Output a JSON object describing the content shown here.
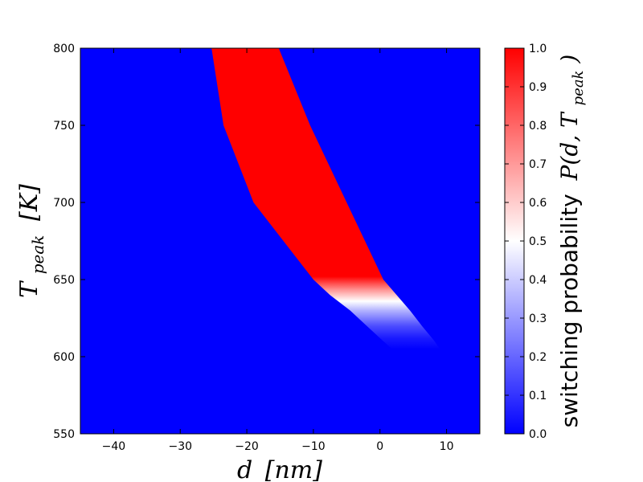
{
  "chart_data": {
    "type": "heatmap",
    "title": "",
    "xlabel": {
      "symbol": "d",
      "unit": "[nm]"
    },
    "ylabel": {
      "symbol": "T",
      "subscript": "peak",
      "unit": "[K]"
    },
    "xlim": [
      -45,
      15
    ],
    "ylim": [
      550,
      800
    ],
    "xticks": [
      -40,
      -30,
      -20,
      -10,
      0,
      10
    ],
    "yticks": [
      550,
      600,
      650,
      700,
      750,
      800
    ],
    "colorbar": {
      "label_prefix": "switching probability",
      "label_math": "P(d, T",
      "label_math_sub": "peak",
      "label_math_end": ")",
      "range": [
        0.0,
        1.0
      ],
      "ticks": [
        "0.0",
        "0.1",
        "0.2",
        "0.3",
        "0.4",
        "0.5",
        "0.6",
        "0.7",
        "0.8",
        "0.9",
        "1.0"
      ],
      "colormap": "bwr",
      "colors": {
        "low": "#0000ff",
        "mid": "#ffffff",
        "high": "#ff0000"
      }
    },
    "background_value": 0.0,
    "band": {
      "description_free": true,
      "left_edge": [
        {
          "T": 800,
          "d": -25.3
        },
        {
          "T": 750,
          "d": -23.5
        },
        {
          "T": 700,
          "d": -19.0
        },
        {
          "T": 650,
          "d": -10.0
        },
        {
          "T": 640,
          "d": -7.5
        },
        {
          "T": 630,
          "d": -4.5
        },
        {
          "T": 620,
          "d": -2.0
        },
        {
          "T": 610,
          "d": 0.5
        },
        {
          "T": 605,
          "d": 1.8
        }
      ],
      "right_edge": [
        {
          "T": 800,
          "d": -15.2
        },
        {
          "T": 750,
          "d": -10.5
        },
        {
          "T": 700,
          "d": -5.0
        },
        {
          "T": 650,
          "d": 0.5
        },
        {
          "T": 640,
          "d": 2.5
        },
        {
          "T": 630,
          "d": 4.5
        },
        {
          "T": 620,
          "d": 6.3
        },
        {
          "T": 610,
          "d": 8.2
        },
        {
          "T": 605,
          "d": 9.0
        }
      ],
      "probability_profile": [
        {
          "T": 800,
          "p": 1.0
        },
        {
          "T": 652,
          "p": 1.0
        },
        {
          "T": 643,
          "p": 0.7
        },
        {
          "T": 636,
          "p": 0.5
        },
        {
          "T": 630,
          "p": 0.35
        },
        {
          "T": 620,
          "p": 0.15
        },
        {
          "T": 612,
          "p": 0.05
        },
        {
          "T": 605,
          "p": 0.0
        }
      ]
    }
  }
}
